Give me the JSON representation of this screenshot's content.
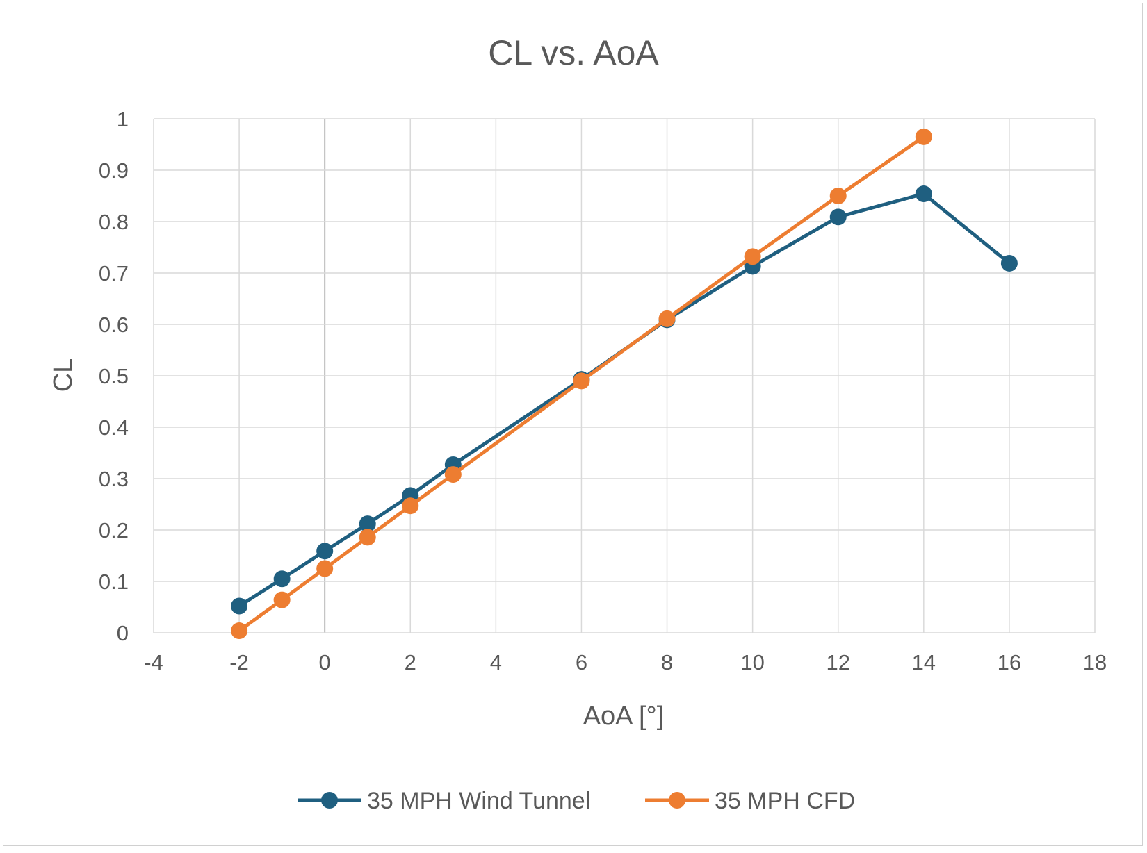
{
  "chart_data": {
    "type": "line",
    "title": "CL vs. AoA",
    "xlabel": "AoA [°]",
    "ylabel": "CL",
    "xlim": [
      -4,
      18
    ],
    "ylim": [
      0,
      1
    ],
    "x_ticks": [
      -4,
      -2,
      0,
      2,
      4,
      6,
      8,
      10,
      12,
      14,
      16,
      18
    ],
    "y_ticks": [
      0,
      0.1,
      0.2,
      0.3,
      0.4,
      0.5,
      0.6,
      0.7,
      0.8,
      0.9,
      1
    ],
    "x_tick_labels": [
      "-4",
      "-2",
      "0",
      "2",
      "4",
      "6",
      "8",
      "10",
      "12",
      "14",
      "16",
      "18"
    ],
    "y_tick_labels": [
      "0",
      "0.1",
      "0.2",
      "0.3",
      "0.4",
      "0.5",
      "0.6",
      "0.7",
      "0.8",
      "0.9",
      "1"
    ],
    "grid": true,
    "legend_position": "bottom",
    "series": [
      {
        "name": "35 MPH Wind Tunnel",
        "color": "#1f5f80",
        "x": [
          -2,
          -1,
          0,
          1,
          2,
          3,
          6,
          8,
          10,
          12,
          14,
          16
        ],
        "y": [
          0.052,
          0.105,
          0.159,
          0.212,
          0.267,
          0.327,
          0.493,
          0.609,
          0.713,
          0.809,
          0.854,
          0.719
        ]
      },
      {
        "name": "35 MPH CFD",
        "color": "#ed7d31",
        "x": [
          -2,
          -1,
          0,
          1,
          2,
          3,
          6,
          8,
          10,
          12,
          14
        ],
        "y": [
          0.004,
          0.064,
          0.125,
          0.186,
          0.247,
          0.308,
          0.49,
          0.611,
          0.732,
          0.85,
          0.965
        ]
      }
    ]
  }
}
